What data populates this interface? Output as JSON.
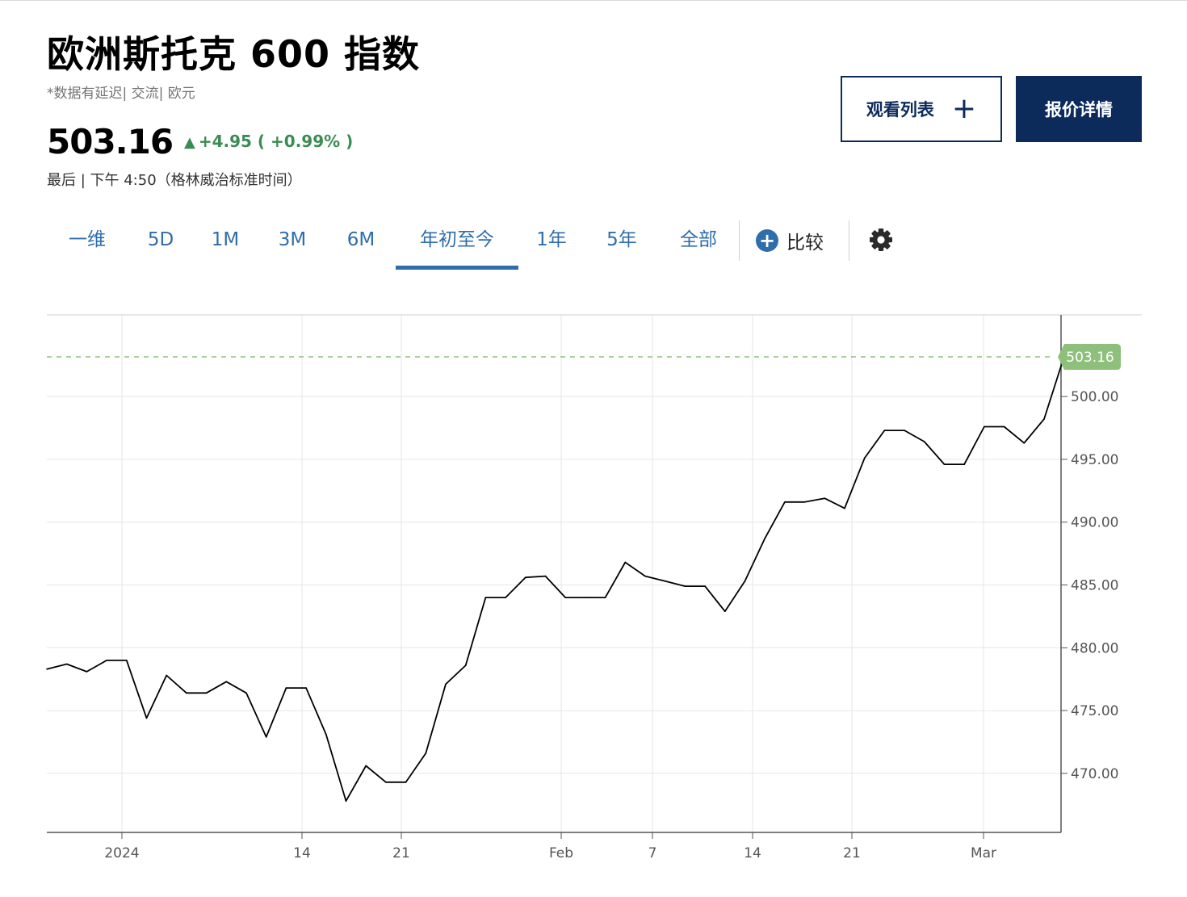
{
  "header": {
    "title": "欧洲斯托克 600 指数",
    "subtitle": "*数据有延迟| 交流| 欧元",
    "price": "503.16",
    "change": "+4.95 ( +0.99% )",
    "last_time": "最后 | 下午 4:50（格林威治标准时间）",
    "up_color": "#3b8c53"
  },
  "buttons": {
    "watchlist_label": "观看列表",
    "quote_label": "报价详情"
  },
  "tabs": [
    {
      "label": "一维"
    },
    {
      "label": "5D"
    },
    {
      "label": "1M"
    },
    {
      "label": "3M"
    },
    {
      "label": "6M"
    },
    {
      "label": "年初至今",
      "active": true
    },
    {
      "label": "1年"
    },
    {
      "label": "5年"
    },
    {
      "label": "全部"
    }
  ],
  "compare_label": "比较",
  "settings_icon": "gear-icon",
  "chart_data": {
    "type": "line",
    "last_value_label": "503.16",
    "last_value": 503.16,
    "ylim": [
      465.3,
      506.5
    ],
    "y_ticks": [
      "500.00",
      "495.00",
      "490.00",
      "485.00",
      "480.00",
      "475.00",
      "470.00"
    ],
    "x_ticks": [
      "2024",
      "14",
      "21",
      "Feb",
      "7",
      "14",
      "21",
      "Mar"
    ],
    "values": [
      478.3,
      478.7,
      478.1,
      479.0,
      479.0,
      474.4,
      477.8,
      476.4,
      476.4,
      477.3,
      476.4,
      472.9,
      476.8,
      476.8,
      473.1,
      467.8,
      470.6,
      469.3,
      469.3,
      471.6,
      477.1,
      478.6,
      484.0,
      484.0,
      485.6,
      485.7,
      484.0,
      484.0,
      484.0,
      486.8,
      485.7,
      485.3,
      484.9,
      484.9,
      482.9,
      485.3,
      488.7,
      491.6,
      491.6,
      491.9,
      491.1,
      495.1,
      497.3,
      497.3,
      496.4,
      494.6,
      494.6,
      497.6,
      497.6,
      496.3,
      498.2,
      503.16
    ],
    "line_color": "#000000",
    "last_value_color": "#8ec07c",
    "grid": true,
    "y_axis_position": "right"
  }
}
